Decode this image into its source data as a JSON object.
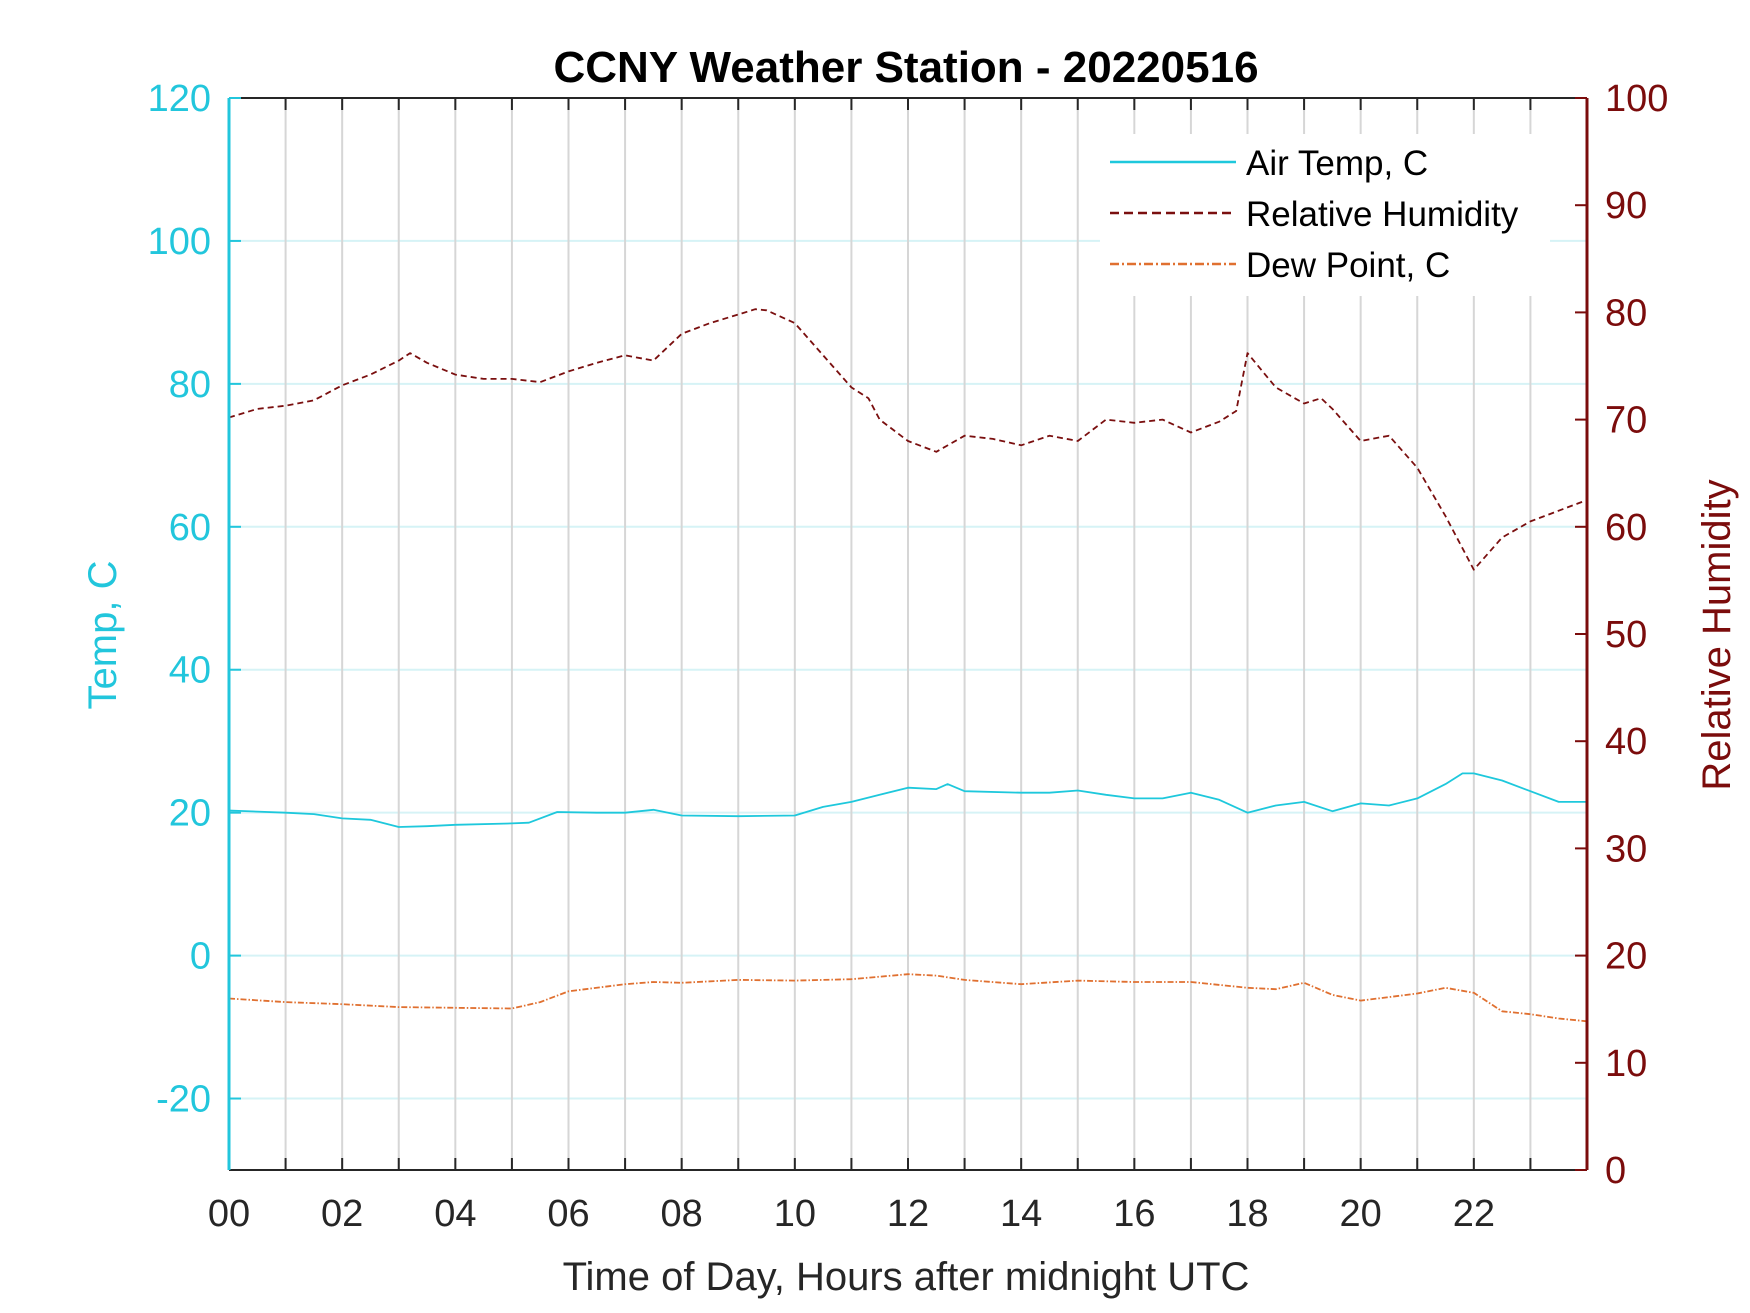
{
  "chart_data": {
    "type": "line",
    "title": "CCNY Weather Station - 20220516",
    "xlabel": "Time of Day, Hours after midnight UTC",
    "ylabel_left": "Temp, C",
    "ylabel_right": "Relative Humidity",
    "xlim": [
      0,
      24
    ],
    "ylim_left": [
      -30,
      120
    ],
    "ylim_right": [
      0,
      100
    ],
    "x_ticks": [
      0,
      2,
      4,
      6,
      8,
      10,
      12,
      14,
      16,
      18,
      20,
      22
    ],
    "x_tick_labels": [
      "00",
      "02",
      "04",
      "06",
      "08",
      "10",
      "12",
      "14",
      "16",
      "18",
      "20",
      "22"
    ],
    "y_left_ticks": [
      -20,
      0,
      20,
      40,
      60,
      80,
      100,
      120
    ],
    "y_left_tick_labels": [
      "-20",
      "0",
      "20",
      "40",
      "60",
      "80",
      "100",
      "120"
    ],
    "y_right_ticks": [
      0,
      10,
      20,
      30,
      40,
      50,
      60,
      70,
      80,
      90,
      100
    ],
    "y_right_tick_labels": [
      "0",
      "10",
      "20",
      "30",
      "40",
      "50",
      "60",
      "70",
      "80",
      "90",
      "100"
    ],
    "grid": "vertical every hour, horizontal at left ticks",
    "legend_position": "top-right",
    "colors": {
      "air_temp": "#1ec8dc",
      "humidity": "#7a0f0f",
      "dew_point": "#e07030",
      "left_axis": "#22c6dc",
      "right_axis": "#7b0c0c",
      "grid_v": "#d6d6d6",
      "grid_h": "#d6f3f6"
    },
    "series": [
      {
        "name": "Air Temp, C",
        "axis": "left",
        "style": "solid",
        "x": [
          0,
          1,
          1.5,
          2,
          2.5,
          3,
          3.5,
          4,
          5,
          5.3,
          5.8,
          6.5,
          7,
          7.5,
          8,
          9,
          10,
          10.5,
          11,
          11.5,
          12,
          12.5,
          12.7,
          13,
          14,
          14.5,
          15,
          15.5,
          16,
          16.5,
          17,
          17.5,
          18,
          18.5,
          19,
          19.5,
          20,
          20.5,
          21,
          21.5,
          21.8,
          22,
          22.5,
          23,
          23.5,
          24
        ],
        "values": [
          20.3,
          20,
          19.8,
          19.2,
          19,
          18,
          18.1,
          18.3,
          18.5,
          18.6,
          20.1,
          20,
          20,
          20.4,
          19.6,
          19.5,
          19.6,
          20.8,
          21.5,
          22.5,
          23.5,
          23.3,
          24,
          23,
          22.8,
          22.8,
          23.1,
          22.5,
          22,
          22,
          22.8,
          21.8,
          20,
          21,
          21.5,
          20.2,
          21.3,
          21,
          22,
          24,
          25.5,
          25.5,
          24.5,
          23,
          21.5,
          21.5
        ]
      },
      {
        "name": "Relative Humidity",
        "axis": "right",
        "style": "dashed",
        "x": [
          0,
          0.5,
          1,
          1.5,
          2,
          2.5,
          3,
          3.2,
          3.5,
          4,
          4.5,
          5,
          5.5,
          6,
          6.5,
          7,
          7.5,
          8,
          8.5,
          9,
          9.3,
          9.5,
          10,
          10.5,
          11,
          11.3,
          11.5,
          12,
          12.5,
          13,
          13.5,
          14,
          14.5,
          15,
          15.5,
          16,
          16.5,
          17,
          17.5,
          17.8,
          18,
          18.5,
          19,
          19.3,
          19.5,
          20,
          20.5,
          21,
          21.5,
          22,
          22.5,
          23,
          23.5,
          24
        ],
        "values": [
          70.2,
          71,
          71.3,
          71.8,
          73.2,
          74.2,
          75.5,
          76.2,
          75.3,
          74.2,
          73.8,
          73.8,
          73.5,
          74.5,
          75.3,
          76,
          75.5,
          78,
          79,
          79.8,
          80.3,
          80.2,
          79,
          76,
          73,
          72,
          70,
          68,
          67,
          68.5,
          68.2,
          67.6,
          68.5,
          68,
          70,
          69.7,
          70,
          68.8,
          69.8,
          70.8,
          76.2,
          73,
          71.5,
          72,
          71,
          68,
          68.5,
          65.5,
          61,
          56,
          59,
          60.5,
          61.5,
          62.5
        ]
      },
      {
        "name": "Dew Point, C",
        "axis": "left",
        "style": "dashdot",
        "x": [
          0,
          1,
          2,
          3,
          4,
          5,
          5.5,
          6,
          7,
          7.5,
          8,
          9,
          10,
          11,
          12,
          12.5,
          13,
          14,
          15,
          16,
          17,
          18,
          18.5,
          19,
          19.5,
          20,
          20.5,
          21,
          21.5,
          22,
          22.5,
          23,
          23.5,
          24
        ],
        "values": [
          -6,
          -6.5,
          -6.8,
          -7.2,
          -7.3,
          -7.4,
          -6.5,
          -5,
          -4,
          -3.7,
          -3.8,
          -3.4,
          -3.5,
          -3.3,
          -2.6,
          -2.8,
          -3.4,
          -4,
          -3.5,
          -3.7,
          -3.7,
          -4.5,
          -4.7,
          -3.8,
          -5.5,
          -6.3,
          -5.8,
          -5.3,
          -4.5,
          -5.2,
          -7.8,
          -8.2,
          -8.8,
          -9.2
        ]
      }
    ]
  }
}
